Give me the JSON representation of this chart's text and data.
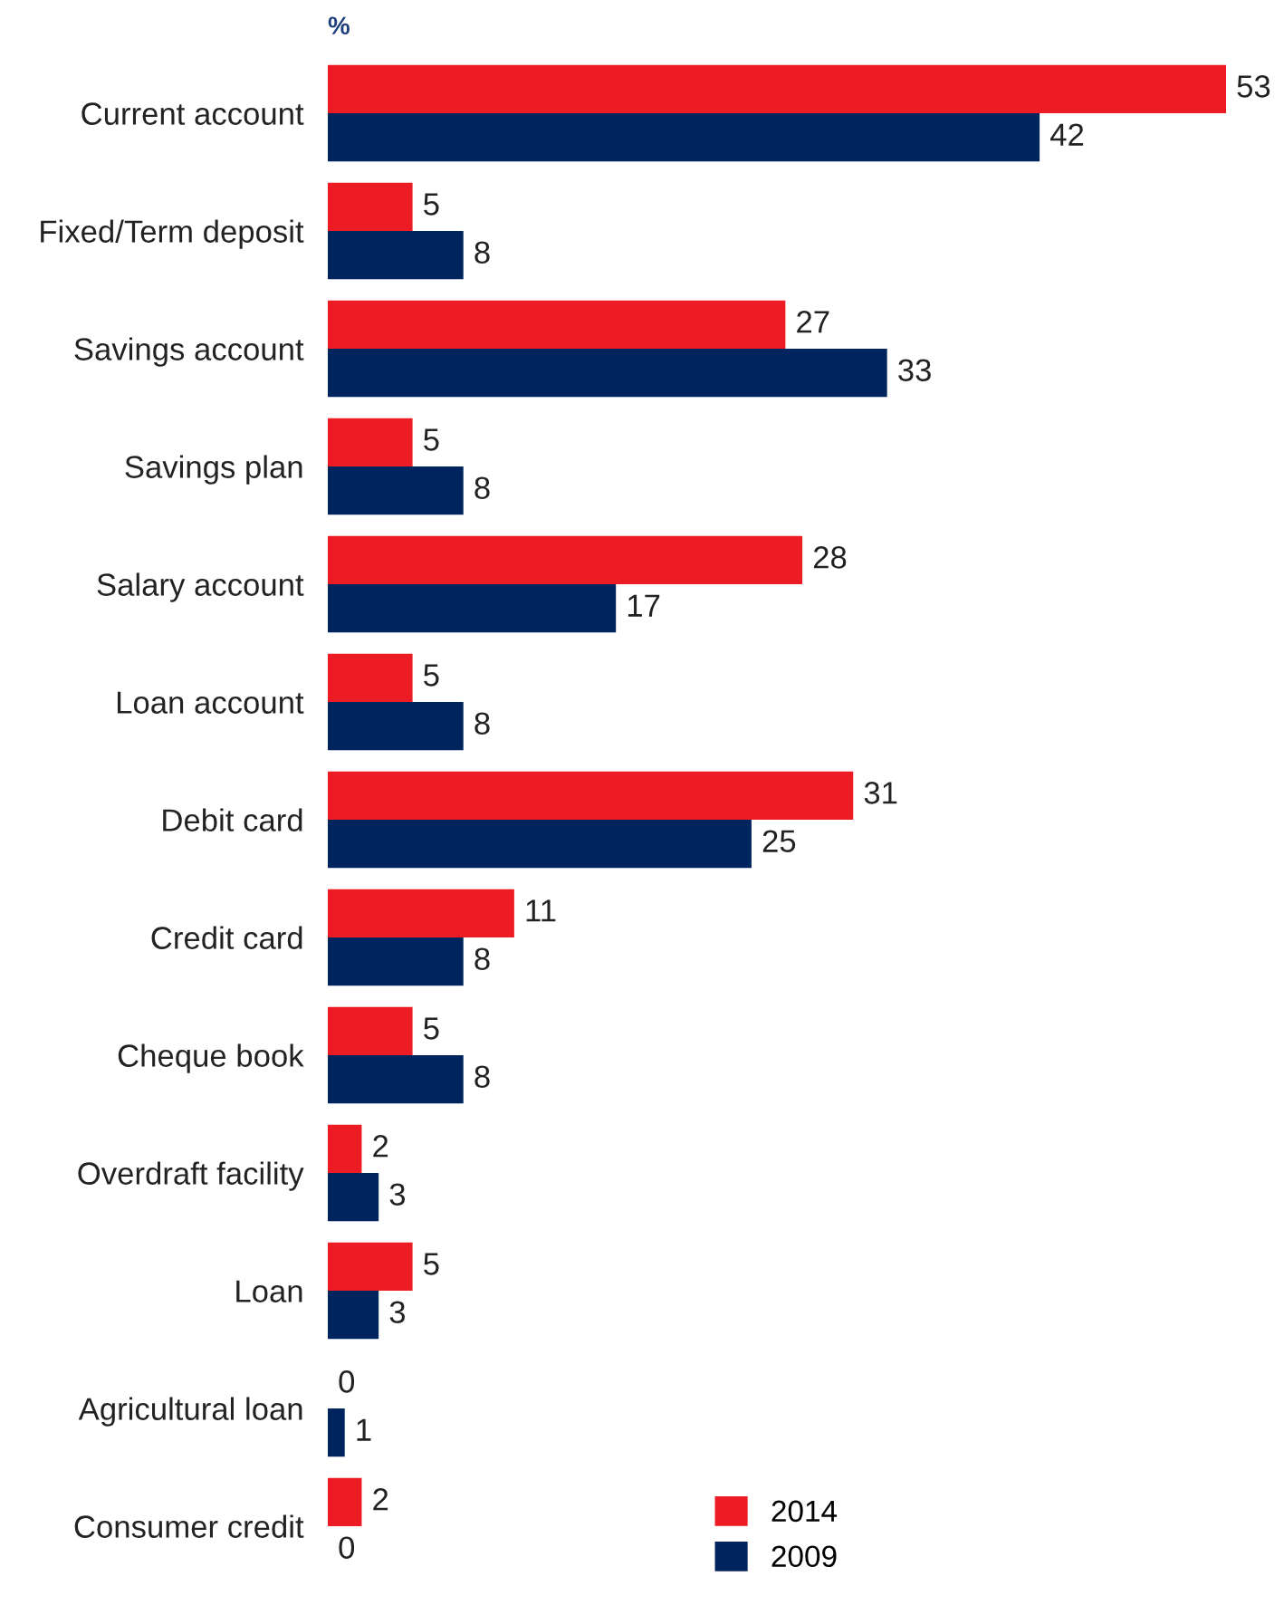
{
  "chart_data": {
    "type": "bar",
    "orientation": "horizontal",
    "title": "%",
    "categories": [
      "Current account",
      "Fixed/Term deposit",
      "Savings account",
      "Savings plan",
      "Salary account",
      "Loan account",
      "Debit card",
      "Credit card",
      "Cheque book",
      "Overdraft facility",
      "Loan",
      "Agricultural loan",
      "Consumer credit"
    ],
    "series": [
      {
        "name": "2014",
        "color": "#ed1c24",
        "values": [
          53,
          5,
          27,
          5,
          28,
          5,
          31,
          11,
          5,
          2,
          5,
          0,
          2
        ]
      },
      {
        "name": "2009",
        "color": "#00245d",
        "values": [
          42,
          8,
          33,
          8,
          17,
          8,
          25,
          8,
          8,
          3,
          3,
          1,
          0
        ]
      }
    ],
    "data_labels": true,
    "legend": "bottom",
    "grid": false,
    "tick_labels": "y"
  }
}
